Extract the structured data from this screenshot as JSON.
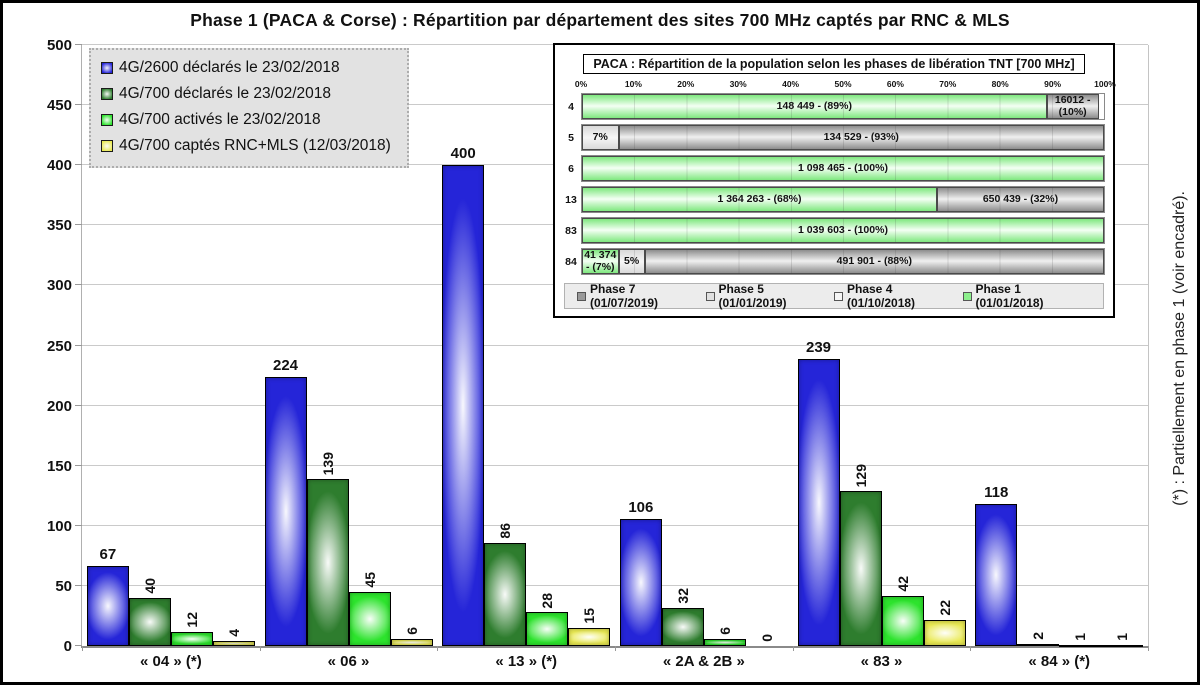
{
  "title": "Phase 1 (PACA & Corse) : Répartition par département des sites 700 MHz captés par RNC & MLS",
  "side_note": "(*) : Partiellement en phase 1 (voir encadré).",
  "colors": {
    "series_blue": "#2525d8",
    "series_dark_green": "#2e7d2e",
    "series_light_green": "#2de32d",
    "series_yellow": "#e9e952",
    "gridline": "#cacaca",
    "legend_bg": "#e2e2e2"
  },
  "chart_data": [
    {
      "type": "bar",
      "title": "Phase 1 (PACA & Corse) : Répartition par département des sites 700 MHz captés par RNC & MLS",
      "categories": [
        "« 04 » (*)",
        "« 06 »",
        "« 13 » (*)",
        "« 2A & 2B »",
        "« 83 »",
        "« 84 » (*)"
      ],
      "series": [
        {
          "name": "4G/2600 déclarés le 23/02/2018",
          "color": "#2525d8",
          "values": [
            67,
            224,
            400,
            106,
            239,
            118
          ]
        },
        {
          "name": "4G/700 déclarés le 23/02/2018",
          "color": "#2e7d2e",
          "values": [
            40,
            139,
            86,
            32,
            129,
            2
          ]
        },
        {
          "name": "4G/700 activés le 23/02/2018",
          "color": "#2de32d",
          "values": [
            12,
            45,
            28,
            6,
            42,
            1
          ]
        },
        {
          "name": "4G/700 captés RNC+MLS (12/03/2018)",
          "color": "#e9e952",
          "values": [
            4,
            6,
            15,
            0,
            22,
            1
          ]
        }
      ],
      "xlabel": "",
      "ylabel": "",
      "ylim": [
        0,
        500
      ],
      "ytick_step": 50,
      "grid": true,
      "legend_position": "top-left"
    },
    {
      "type": "bar-horizontal-stacked",
      "title": "PACA : Répartition de la population selon les phases de libération TNT [700 MHz]",
      "x_ticks": [
        "0%",
        "10%",
        "20%",
        "30%",
        "40%",
        "50%",
        "60%",
        "70%",
        "80%",
        "90%",
        "100%"
      ],
      "xlim": [
        0,
        100
      ],
      "phase_colors": {
        "Phase 7": "#9a9a9a",
        "Phase 5": "#e0e0e0",
        "Phase 4": "#f5f5f5",
        "Phase 1": "#8df08d"
      },
      "rows": [
        {
          "label": "4",
          "segments": [
            {
              "phase": "Phase 1",
              "pct": 89,
              "text": "148 449 - (89%)"
            },
            {
              "phase": "Phase 7",
              "pct": 10,
              "text": "16012 - (10%)"
            }
          ]
        },
        {
          "label": "5",
          "segments": [
            {
              "phase": "Phase 5",
              "pct": 7,
              "text": "7%"
            },
            {
              "phase": "Phase 7",
              "pct": 93,
              "text": "134 529 - (93%)"
            }
          ]
        },
        {
          "label": "6",
          "segments": [
            {
              "phase": "Phase 1",
              "pct": 100,
              "text": "1 098 465 - (100%)"
            }
          ]
        },
        {
          "label": "13",
          "segments": [
            {
              "phase": "Phase 1",
              "pct": 68,
              "text": "1 364 263 - (68%)"
            },
            {
              "phase": "Phase 7",
              "pct": 32,
              "text": "650 439 - (32%)"
            }
          ]
        },
        {
          "label": "83",
          "segments": [
            {
              "phase": "Phase 1",
              "pct": 100,
              "text": "1 039 603 - (100%)"
            }
          ]
        },
        {
          "label": "84",
          "segments": [
            {
              "phase": "Phase 1",
              "pct": 7,
              "text": "41 374 - (7%)"
            },
            {
              "phase": "Phase 5",
              "pct": 5,
              "text": "5%"
            },
            {
              "phase": "Phase 7",
              "pct": 88,
              "text": "491 901 - (88%)"
            }
          ]
        }
      ],
      "legend": [
        {
          "label": "Phase 7 (01/07/2019)",
          "phase": "Phase 7"
        },
        {
          "label": "Phase 5 (01/01/2019)",
          "phase": "Phase 5"
        },
        {
          "label": "Phase 4 (01/10/2018)",
          "phase": "Phase 4"
        },
        {
          "label": "Phase 1 (01/01/2018)",
          "phase": "Phase 1"
        }
      ],
      "legend_position": "bottom"
    }
  ]
}
